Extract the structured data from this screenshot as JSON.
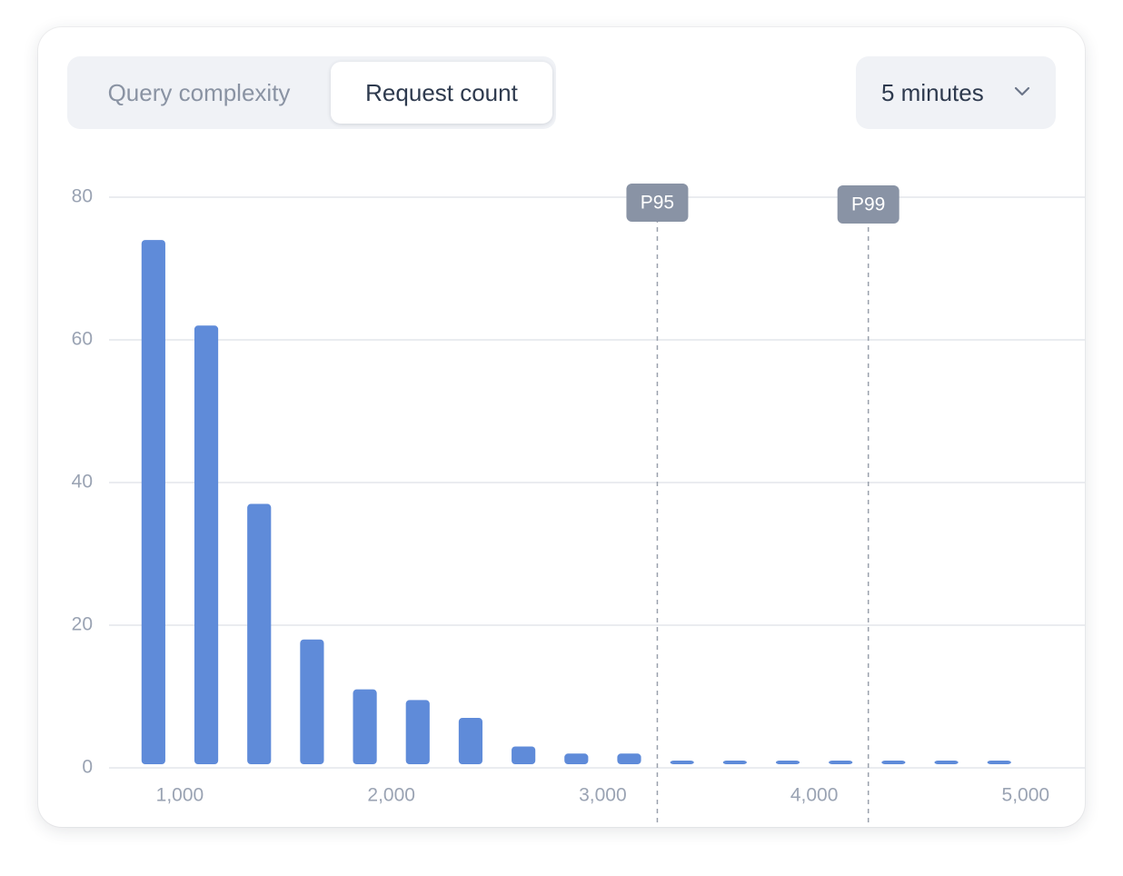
{
  "ui": {
    "tabs": [
      "Query complexity",
      "Request count"
    ],
    "dropdown": "5 minutes"
  },
  "chart_data": {
    "type": "histogram",
    "bins": [
      750,
      1000,
      1250,
      1500,
      1750,
      2000,
      2250,
      2500,
      2750,
      3000,
      3250,
      3500,
      3750,
      4000,
      4250,
      4500,
      4750,
      5000
    ],
    "values": [
      74,
      62,
      37,
      18,
      11,
      9.5,
      7,
      3,
      2,
      2,
      1,
      1,
      0.5,
      0.5,
      0.5,
      0.2,
      0.2
    ],
    "color": "#5f8bd9",
    "xlim": [
      665,
      5280
    ],
    "xticks": [
      {
        "value": 1000,
        "label": "1,000"
      },
      {
        "value": 2000,
        "label": "2,000"
      },
      {
        "value": 3000,
        "label": "3,000"
      },
      {
        "value": 4000,
        "label": "4,000"
      },
      {
        "value": 5000,
        "label": "5,000"
      }
    ],
    "ylim": [
      0,
      80
    ],
    "yticks": [
      0,
      20,
      40,
      60,
      80
    ],
    "grid": true,
    "annotations": [
      {
        "label": "P95",
        "x": 3258
      },
      {
        "label": "P99",
        "x": 4256
      }
    ]
  }
}
